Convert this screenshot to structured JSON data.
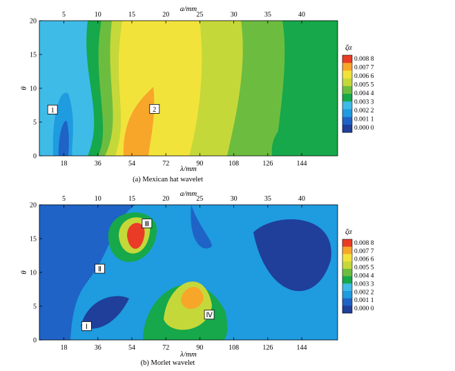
{
  "chart_data": [
    {
      "type": "heatmap",
      "panel": "a",
      "caption": "(a) Mexican hat wavelet",
      "xlabel": "λ/mm",
      "x_ticks": [
        "18",
        "36",
        "54",
        "72",
        "90",
        "108",
        "126",
        "144"
      ],
      "top_xlabel": "a/mm",
      "top_ticks": [
        "5",
        "10",
        "15",
        "20",
        "25",
        "30",
        "35",
        "40"
      ],
      "ylabel": "θ",
      "y_ticks": [
        "0",
        "5",
        "10",
        "15",
        "20"
      ],
      "xlim": [
        5,
        163
      ],
      "ylim": [
        0,
        20
      ],
      "regions": [
        {
          "label": "1",
          "x": 12,
          "y": 6.8
        },
        {
          "label": "2",
          "x": 66,
          "y": 6.9
        }
      ],
      "colorbar": {
        "label": "ζα",
        "levels": [
          "0.008 8",
          "0.007 7",
          "0.006 6",
          "0.005 5",
          "0.004 4",
          "0.003 3",
          "0.002 2",
          "0.001 1",
          "0.000 0"
        ]
      }
    },
    {
      "type": "heatmap",
      "panel": "b",
      "caption": "(b) Morlet wavelet",
      "xlabel": "λ/mm",
      "x_ticks": [
        "18",
        "36",
        "54",
        "72",
        "90",
        "108",
        "126",
        "144"
      ],
      "top_xlabel": "a/mm",
      "top_ticks": [
        "5",
        "10",
        "15",
        "20",
        "25",
        "30",
        "35",
        "40"
      ],
      "ylabel": "θ",
      "y_ticks": [
        "0",
        "5",
        "10",
        "15",
        "20"
      ],
      "xlim": [
        5,
        163
      ],
      "ylim": [
        0,
        20
      ],
      "regions": [
        {
          "label": "Ⅰ",
          "x": 30,
          "y": 2
        },
        {
          "label": "Ⅱ",
          "x": 37,
          "y": 10.5
        },
        {
          "label": "Ⅲ",
          "x": 62,
          "y": 17.2
        },
        {
          "label": "Ⅳ",
          "x": 95,
          "y": 3.7
        }
      ],
      "colorbar": {
        "label": "ζα",
        "levels": [
          "0.008 8",
          "0.007 7",
          "0.006 6",
          "0.005 5",
          "0.004 4",
          "0.003 3",
          "0.002 2",
          "0.001 1",
          "0.000 0"
        ]
      }
    }
  ],
  "colors": {
    "scale": [
      "#1f3f9a",
      "#1f63c6",
      "#1f9be0",
      "#3fbbe8",
      "#16a84a",
      "#6cbd3f",
      "#c5d83a",
      "#f2e33b",
      "#f7a62a",
      "#ea3b27"
    ]
  }
}
